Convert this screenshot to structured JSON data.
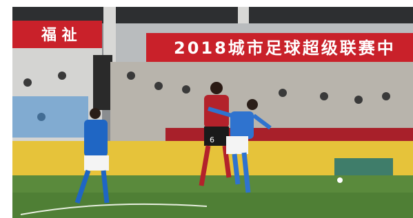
{
  "banners": {
    "left": "福 祉",
    "right": "2018城市足球超级联赛中"
  },
  "jersey_number": "6"
}
